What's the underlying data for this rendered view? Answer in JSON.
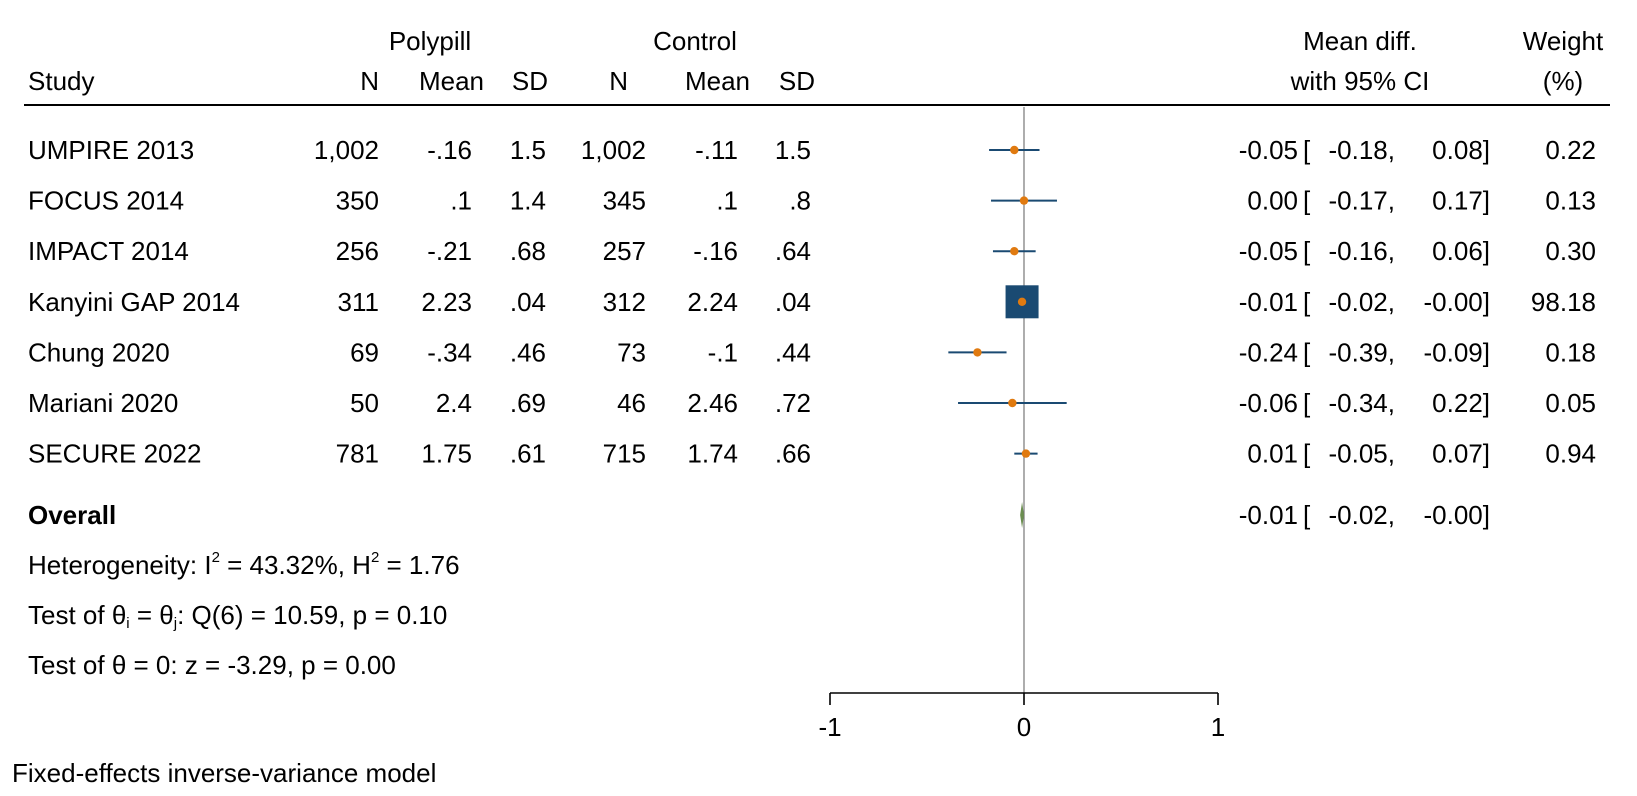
{
  "chart_data": {
    "type": "forest",
    "headers": {
      "study": "Study",
      "group1": "Polypill",
      "group2": "Control",
      "n": "N",
      "mean": "Mean",
      "sd": "SD",
      "effect_line1": "Mean diff.",
      "effect_line2": "with 95% CI",
      "weight_line1": "Weight",
      "weight_line2": "(%)"
    },
    "studies": [
      {
        "study": "UMPIRE 2013",
        "n1": "1,002",
        "mean1": "-.16",
        "sd1": "1.5",
        "n2": "1,002",
        "mean2": "-.11",
        "sd2": "1.5",
        "md": -0.05,
        "lo": -0.18,
        "hi": 0.08,
        "md_text": "-0.05",
        "lo_text": "-0.18,",
        "hi_text": "0.08]",
        "weight": 0.22,
        "weight_text": "0.22"
      },
      {
        "study": "FOCUS 2014",
        "n1": "350",
        "mean1": ".1",
        "sd1": "1.4",
        "n2": "345",
        "mean2": ".1",
        "sd2": ".8",
        "md": 0.0,
        "lo": -0.17,
        "hi": 0.17,
        "md_text": "0.00",
        "lo_text": "-0.17,",
        "hi_text": "0.17]",
        "weight": 0.13,
        "weight_text": "0.13"
      },
      {
        "study": "IMPACT 2014",
        "n1": "256",
        "mean1": "-.21",
        "sd1": ".68",
        "n2": "257",
        "mean2": "-.16",
        "sd2": ".64",
        "md": -0.05,
        "lo": -0.16,
        "hi": 0.06,
        "md_text": "-0.05",
        "lo_text": "-0.16,",
        "hi_text": "0.06]",
        "weight": 0.3,
        "weight_text": "0.30"
      },
      {
        "study": "Kanyini GAP 2014",
        "n1": "311",
        "mean1": "2.23",
        "sd1": ".04",
        "n2": "312",
        "mean2": "2.24",
        "sd2": ".04",
        "md": -0.01,
        "lo": -0.02,
        "hi": 0.0,
        "md_text": "-0.01",
        "lo_text": "-0.02,",
        "hi_text": "-0.00]",
        "weight": 98.18,
        "weight_text": "98.18"
      },
      {
        "study": "Chung 2020",
        "n1": "69",
        "mean1": "-.34",
        "sd1": ".46",
        "n2": "73",
        "mean2": "-.1",
        "sd2": ".44",
        "md": -0.24,
        "lo": -0.39,
        "hi": -0.09,
        "md_text": "-0.24",
        "lo_text": "-0.39,",
        "hi_text": "-0.09]",
        "weight": 0.18,
        "weight_text": "0.18"
      },
      {
        "study": "Mariani 2020",
        "n1": "50",
        "mean1": "2.4",
        "sd1": ".69",
        "n2": "46",
        "mean2": "2.46",
        "sd2": ".72",
        "md": -0.06,
        "lo": -0.34,
        "hi": 0.22,
        "md_text": "-0.06",
        "lo_text": "-0.34,",
        "hi_text": "0.22]",
        "weight": 0.05,
        "weight_text": "0.05"
      },
      {
        "study": "SECURE 2022",
        "n1": "781",
        "mean1": "1.75",
        "sd1": ".61",
        "n2": "715",
        "mean2": "1.74",
        "sd2": ".66",
        "md": 0.01,
        "lo": -0.05,
        "hi": 0.07,
        "md_text": "0.01",
        "lo_text": "-0.05,",
        "hi_text": "0.07]",
        "weight": 0.94,
        "weight_text": "0.94"
      }
    ],
    "overall": {
      "label": "Overall",
      "md": -0.01,
      "lo": -0.02,
      "hi": 0.0,
      "md_text": "-0.01",
      "lo_text": "-0.02,",
      "hi_text": "-0.00]"
    },
    "heterogeneity": {
      "prefix": "Heterogeneity: I",
      "sup1": "2",
      "mid": " = 43.32%, H",
      "sup2": "2",
      "suffix": " = 1.76"
    },
    "test_q": {
      "a": "Test of θ",
      "sub_i": "i",
      "b": " = θ",
      "sub_j": "j",
      "c": ": Q(6) = 10.59, p = 0.10"
    },
    "test_z": "Test of θ = 0: z = -3.29, p = 0.00",
    "axis": {
      "ticks": [
        -1,
        0,
        1
      ],
      "tick_labels": [
        "-1",
        "0",
        "1"
      ],
      "xlim": [
        -1,
        1
      ],
      "reference_line": 0
    },
    "model_note": "Fixed-effects inverse-variance model",
    "colors": {
      "ci_line": "#1a4a72",
      "point": "#e07a10",
      "weight_box": "#1a4a72",
      "overall_diamond": "#6b8e50",
      "reference_line": "#777777"
    }
  }
}
